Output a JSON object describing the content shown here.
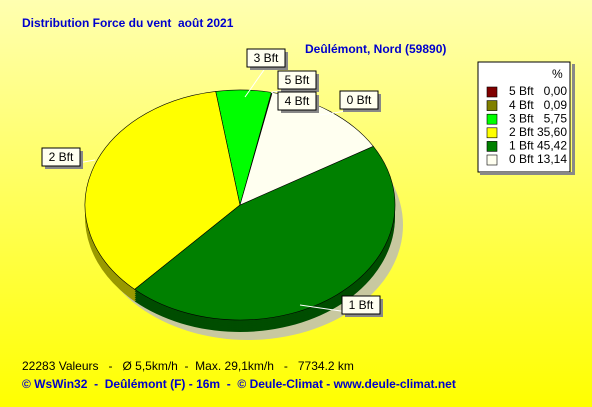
{
  "chart_data": {
    "type": "pie",
    "title": "Distribution Force du vent  août 2021",
    "subtitle": "Deûlémont, Nord (59890)",
    "legend_header": "%",
    "categories": [
      "5 Bft",
      "4 Bft",
      "3 Bft",
      "2 Bft",
      "1 Bft",
      "0 Bft"
    ],
    "values": [
      0.0,
      0.09,
      5.75,
      35.6,
      45.42,
      13.14
    ],
    "value_labels": [
      "0,00",
      "0,09",
      "5,75",
      "35,60",
      "45,42",
      "13,14"
    ],
    "colors": [
      "#800000",
      "#808000",
      "#00ff00",
      "#ffff00",
      "#008000",
      "#fffff0"
    ],
    "legend": "right",
    "footer": "22283 Valeurs   -   Ø 5,5km/h  -  Max. 29,1km/h   -   7734.2 km",
    "credits": "© WsWin32  -  Deûlémont (F) - 16m  -  © Deule-Climat - www.deule-climat.net"
  }
}
